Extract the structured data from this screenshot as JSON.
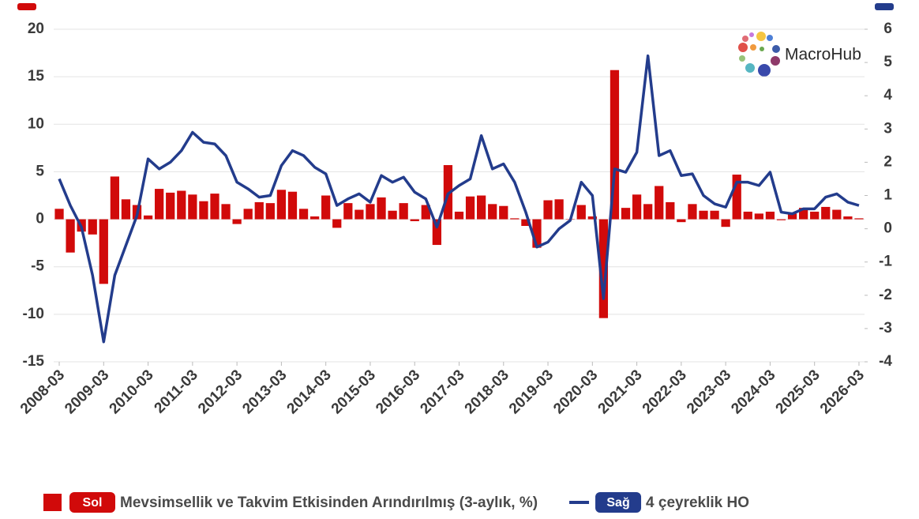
{
  "chart_data": {
    "type": "bar_line",
    "watermark": "MacroHub",
    "categories": [
      "2008-03",
      null,
      null,
      null,
      "2009-03",
      null,
      null,
      null,
      "2010-03",
      null,
      null,
      null,
      "2011-03",
      null,
      null,
      null,
      "2012-03",
      null,
      null,
      null,
      "2013-03",
      null,
      null,
      null,
      "2014-03",
      null,
      null,
      null,
      "2015-03",
      null,
      null,
      null,
      "2016-03",
      null,
      null,
      null,
      "2017-03",
      null,
      null,
      null,
      "2018-03",
      null,
      null,
      null,
      "2019-03",
      null,
      null,
      null,
      "2020-03",
      null,
      null,
      null,
      "2021-03",
      null,
      null,
      null,
      "2022-03",
      null,
      null,
      null,
      "2023-03",
      null,
      null,
      null,
      "2024-03",
      null,
      null,
      null,
      "2025-03",
      null,
      null,
      null,
      "2026-03"
    ],
    "series": [
      {
        "name": "Mevsimsellik ve Takvim Etkisinden Arındırılmış (3-aylık, %)",
        "badge": "Sol",
        "kind": "bar",
        "color": "#d10a0a",
        "values": [
          1.1,
          -3.5,
          -1.3,
          -1.6,
          -6.8,
          4.5,
          2.1,
          1.5,
          0.4,
          3.2,
          2.8,
          3.0,
          2.6,
          1.9,
          2.7,
          1.6,
          -0.5,
          1.1,
          1.8,
          1.7,
          3.1,
          2.9,
          1.1,
          0.3,
          2.5,
          -0.9,
          1.7,
          1.0,
          1.6,
          2.3,
          0.9,
          1.7,
          -0.2,
          1.5,
          -2.7,
          5.7,
          0.8,
          2.4,
          2.5,
          1.6,
          1.4,
          0.1,
          -0.7,
          -3.0,
          2.0,
          2.1,
          0.0,
          1.5,
          0.3,
          -10.4,
          15.7,
          1.2,
          2.6,
          1.6,
          3.5,
          1.8,
          -0.3,
          1.6,
          0.9,
          0.9,
          -0.8,
          4.7,
          0.8,
          0.6,
          0.8,
          -0.1,
          0.6,
          1.2,
          0.8,
          1.3,
          1.0,
          0.3,
          0.1
        ]
      },
      {
        "name": "4 çeyreklik HO",
        "badge": "Sağ",
        "kind": "line",
        "axis": "y2",
        "color": "#233c8c",
        "values": [
          1.5,
          0.7,
          0.05,
          -1.4,
          -3.4,
          -1.4,
          -0.5,
          0.4,
          2.1,
          1.8,
          2.0,
          2.35,
          2.9,
          2.6,
          2.55,
          2.2,
          1.4,
          1.2,
          0.95,
          1.0,
          1.9,
          2.35,
          2.2,
          1.85,
          1.65,
          0.7,
          0.9,
          1.05,
          0.8,
          1.6,
          1.4,
          1.55,
          1.1,
          0.9,
          0.05,
          1.05,
          1.3,
          1.5,
          2.8,
          1.8,
          1.95,
          1.4,
          0.5,
          -0.55,
          -0.4,
          0.0,
          0.25,
          1.4,
          1.0,
          -2.1,
          1.8,
          1.7,
          2.3,
          5.2,
          2.2,
          2.35,
          1.6,
          1.65,
          1.0,
          0.75,
          0.65,
          1.4,
          1.4,
          1.3,
          1.7,
          0.5,
          0.45,
          0.6,
          0.6,
          0.95,
          1.05,
          0.8,
          0.7
        ]
      }
    ],
    "ylim": [
      -15,
      20
    ],
    "yticks": [
      20,
      15,
      10,
      5,
      0,
      -5,
      -10,
      -15
    ],
    "y2lim": [
      -4,
      6
    ],
    "y2ticks": [
      6,
      5,
      4,
      3,
      2,
      1,
      0,
      -1,
      -2,
      -3,
      -4
    ],
    "grid": true
  }
}
